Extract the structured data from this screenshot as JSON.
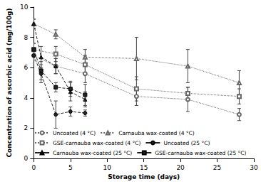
{
  "chart_data": {
    "type": "line",
    "x_label": "Storage time (days)",
    "y_label": "Concentration of ascorbic acid (mg/100g)",
    "xlim": [
      0,
      30
    ],
    "xticks": [
      0,
      5,
      10,
      15,
      20,
      25,
      30
    ],
    "ylim": [
      0,
      10
    ],
    "yticks": [
      0,
      2,
      4,
      6,
      8,
      10
    ],
    "grid": false,
    "legend": "lower left",
    "series": [
      {
        "name": "Uncoated (4 °C)",
        "color": "#666666",
        "marker": "open-circle",
        "line_style": "dotted",
        "x": [
          0,
          3,
          7,
          14,
          21,
          28
        ],
        "values": [
          6.8,
          6.1,
          5.6,
          4.1,
          3.9,
          2.9
        ],
        "errors": [
          0.3,
          0.5,
          0.6,
          0.6,
          0.8,
          0.4
        ]
      },
      {
        "name": "Carnauba wax-coated (4 °C)",
        "color": "#666666",
        "marker": "open-triangle",
        "line_style": "dotted",
        "x": [
          0,
          3,
          7,
          14,
          21,
          28
        ],
        "values": [
          8.9,
          8.2,
          6.7,
          6.6,
          6.1,
          5.0
        ],
        "errors": [
          0.3,
          0.3,
          0.5,
          1.4,
          1.1,
          0.8
        ]
      },
      {
        "name": "GSE-carnauba wax-coated (4 °C)",
        "color": "#666666",
        "marker": "open-square",
        "line_style": "dotted",
        "x": [
          0,
          3,
          7,
          14,
          21,
          28
        ],
        "values": [
          7.2,
          6.9,
          6.2,
          4.6,
          4.3,
          4.1
        ],
        "errors": [
          0.4,
          0.5,
          0.6,
          0.8,
          0.4,
          0.5
        ]
      },
      {
        "name": "Uncoated (25 °C)",
        "color": "#222222",
        "marker": "filled-circle",
        "line_style": "dashed",
        "x": [
          0,
          1,
          3,
          5,
          7
        ],
        "values": [
          6.8,
          5.6,
          2.9,
          3.1,
          3.0
        ],
        "errors": [
          0.3,
          0.6,
          0.9,
          0.3,
          0.2
        ]
      },
      {
        "name": "Carnauba wax-coated (25 °C)",
        "color": "#222222",
        "marker": "filled-triangle",
        "line_style": "dashed",
        "x": [
          0,
          1,
          3,
          5,
          7
        ],
        "values": [
          8.9,
          6.7,
          6.1,
          4.4,
          3.9
        ],
        "errors": [
          0.3,
          0.7,
          0.5,
          0.6,
          0.5
        ]
      },
      {
        "name": "GSE-carnauba wax-coated (25 °C)",
        "color": "#222222",
        "marker": "filled-square",
        "line_style": "dashed",
        "x": [
          0,
          1,
          3,
          5,
          7
        ],
        "values": [
          7.2,
          5.8,
          4.7,
          4.6,
          4.2
        ],
        "errors": [
          0.4,
          0.6,
          0.3,
          0.5,
          0.7
        ]
      }
    ]
  }
}
